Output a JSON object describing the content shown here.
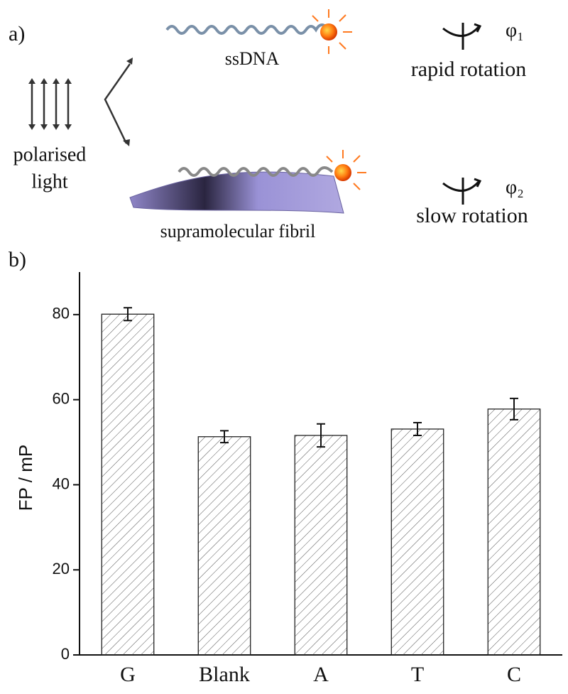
{
  "diagram": {
    "panel_a": "a)",
    "ssdna": "ssDNA",
    "light_1": "polarised",
    "light_2": "light",
    "phi_1": "φ₁",
    "rapid": "rapid rotation",
    "phi_2": "φ₂",
    "slow": "slow rotation",
    "fibril": "supramolecular fibril",
    "panel_b": "b)"
  },
  "chart_data": {
    "type": "bar",
    "categories": [
      "G",
      "Blank",
      "A",
      "T",
      "C"
    ],
    "values": [
      80.1,
      51.3,
      51.6,
      53.1,
      57.8
    ],
    "errors": [
      1.5,
      1.4,
      2.7,
      1.5,
      2.5
    ],
    "y_label": "FP / mP",
    "ylim": [
      0,
      90
    ],
    "yticks": [
      0,
      20,
      40,
      60,
      80
    ],
    "color": "#555555",
    "pattern": "hatch"
  }
}
